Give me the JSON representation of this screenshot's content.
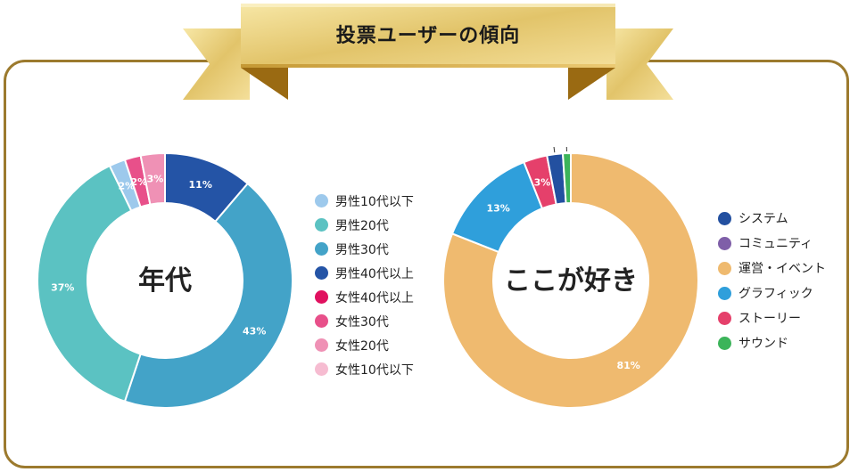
{
  "title": "投票ユーザーの傾向",
  "chart_data": [
    {
      "type": "pie",
      "title": "年代",
      "slices": [
        {
          "label": "男性10代以下",
          "value": 2,
          "label_text": "2%",
          "color": "#9dc9ec"
        },
        {
          "label": "男性20代",
          "value": 37,
          "label_text": "37%",
          "color": "#5bc2c2"
        },
        {
          "label": "男性30代",
          "value": 43,
          "label_text": "43%",
          "color": "#43a3c8"
        },
        {
          "label": "男性40代以上",
          "value": 11,
          "label_text": "11%",
          "color": "#2454a6"
        },
        {
          "label": "女性40代以上",
          "value": 0,
          "label_text": "",
          "color": "#e0115f"
        },
        {
          "label": "女性30代",
          "value": 2,
          "label_text": "2%",
          "color": "#e8508a"
        },
        {
          "label": "女性20代",
          "value": 3,
          "label_text": "3%",
          "color": "#ef91b5"
        },
        {
          "label": "女性10代以下",
          "value": 0,
          "label_text": "",
          "color": "#f6bcd1"
        }
      ],
      "draw_order": [
        "男性40代以上",
        "男性30代",
        "男性20代",
        "男性10代以下",
        "女性30代",
        "女性20代"
      ]
    },
    {
      "type": "pie",
      "title": "ここが好き",
      "slices": [
        {
          "label": "システム",
          "value": 2,
          "label_text": "2%",
          "color": "#2350a0"
        },
        {
          "label": "コミュニティ",
          "value": 0,
          "label_text": "",
          "color": "#7f5fa8"
        },
        {
          "label": "運営・イベント",
          "value": 81,
          "label_text": "81%",
          "color": "#efba6f"
        },
        {
          "label": "グラフィック",
          "value": 13,
          "label_text": "13%",
          "color": "#2f9fdb"
        },
        {
          "label": "ストーリー",
          "value": 3,
          "label_text": "3%",
          "color": "#e5406b"
        },
        {
          "label": "サウンド",
          "value": 1,
          "label_text": "1%",
          "color": "#3cb45a"
        }
      ],
      "draw_order": [
        "運営・イベント",
        "グラフィック",
        "ストーリー",
        "システム",
        "サウンド"
      ]
    }
  ]
}
